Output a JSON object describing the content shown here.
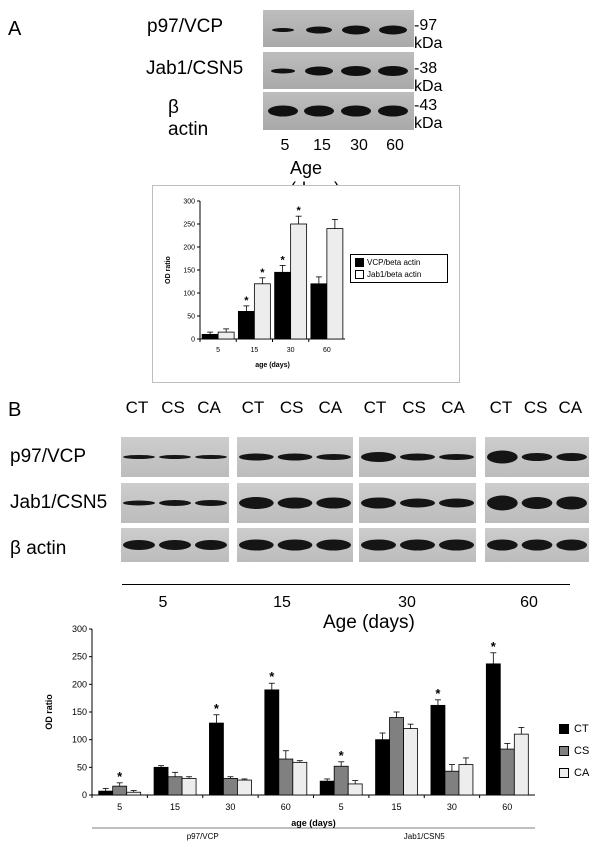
{
  "panel_a": {
    "letter": "A",
    "blot_rows": [
      {
        "protein": "p97/VCP",
        "kda": "97 kDa"
      },
      {
        "protein": "Jab1/CSN5",
        "kda": "38 kDa"
      },
      {
        "protein": "β actin",
        "kda": "43 kDa"
      }
    ],
    "lanes": [
      "5",
      "15",
      "30",
      "60"
    ],
    "age_label": "Age (days)"
  },
  "panel_b": {
    "letter": "B",
    "lane_labels": [
      "CT",
      "CS",
      "CA"
    ],
    "blot_rows": [
      "p97/VCP",
      "Jab1/CSN5",
      "β actin"
    ],
    "ages": [
      "5",
      "15",
      "30",
      "60"
    ],
    "age_label": "Age (days)"
  },
  "chart_data": [
    {
      "type": "bar",
      "categories": [
        "5",
        "15",
        "30",
        "60"
      ],
      "series": [
        {
          "name": "VCP/beta actin",
          "values": [
            10,
            60,
            145,
            120
          ],
          "errors": [
            5,
            12,
            15,
            15
          ],
          "color": "#000000"
        },
        {
          "name": "Jab1/beta actin",
          "values": [
            15,
            120,
            250,
            240
          ],
          "errors": [
            7,
            13,
            17,
            20
          ],
          "color": "#ededed"
        }
      ],
      "significant": [
        [
          false,
          true,
          true,
          false
        ],
        [
          false,
          true,
          true,
          false
        ]
      ],
      "xlabel": "age (days)",
      "ylabel": "OD ratio",
      "ylim": [
        0,
        300
      ],
      "yticks": [
        "0",
        "50",
        "100",
        "150",
        "200",
        "250",
        "300"
      ],
      "grid": false,
      "legend": "right"
    },
    {
      "type": "bar",
      "categories": [
        "5",
        "15",
        "30",
        "60",
        "5",
        "15",
        "30",
        "60"
      ],
      "groups": [
        "p97/VCP",
        "Jab1/CSN5"
      ],
      "series": [
        {
          "name": "CT",
          "values": [
            7,
            50,
            130,
            190,
            25,
            100,
            162,
            237
          ],
          "errors": [
            5,
            3,
            15,
            12,
            4,
            12,
            10,
            20
          ],
          "color": "#000000"
        },
        {
          "name": "CS",
          "values": [
            16,
            33,
            30,
            65,
            52,
            140,
            43,
            83
          ],
          "errors": [
            6,
            8,
            3,
            15,
            8,
            10,
            12,
            10
          ],
          "color": "#808080"
        },
        {
          "name": "CA",
          "values": [
            5,
            30,
            27,
            59,
            20,
            120,
            55,
            110
          ],
          "errors": [
            3,
            3,
            2,
            3,
            6,
            8,
            12,
            12
          ],
          "color": "#ededed"
        }
      ],
      "significant": [
        [
          false,
          false,
          true,
          true,
          false,
          false,
          true,
          true
        ],
        [
          true,
          false,
          false,
          false,
          true,
          false,
          false,
          false
        ],
        [
          false,
          false,
          false,
          false,
          false,
          false,
          false,
          false
        ]
      ],
      "xlabel": "age (days)",
      "ylabel": "OD ratio",
      "ylim": [
        0,
        300
      ],
      "yticks": [
        "0",
        "50",
        "100",
        "150",
        "200",
        "250",
        "300"
      ],
      "grid": false,
      "legend": "right"
    }
  ]
}
